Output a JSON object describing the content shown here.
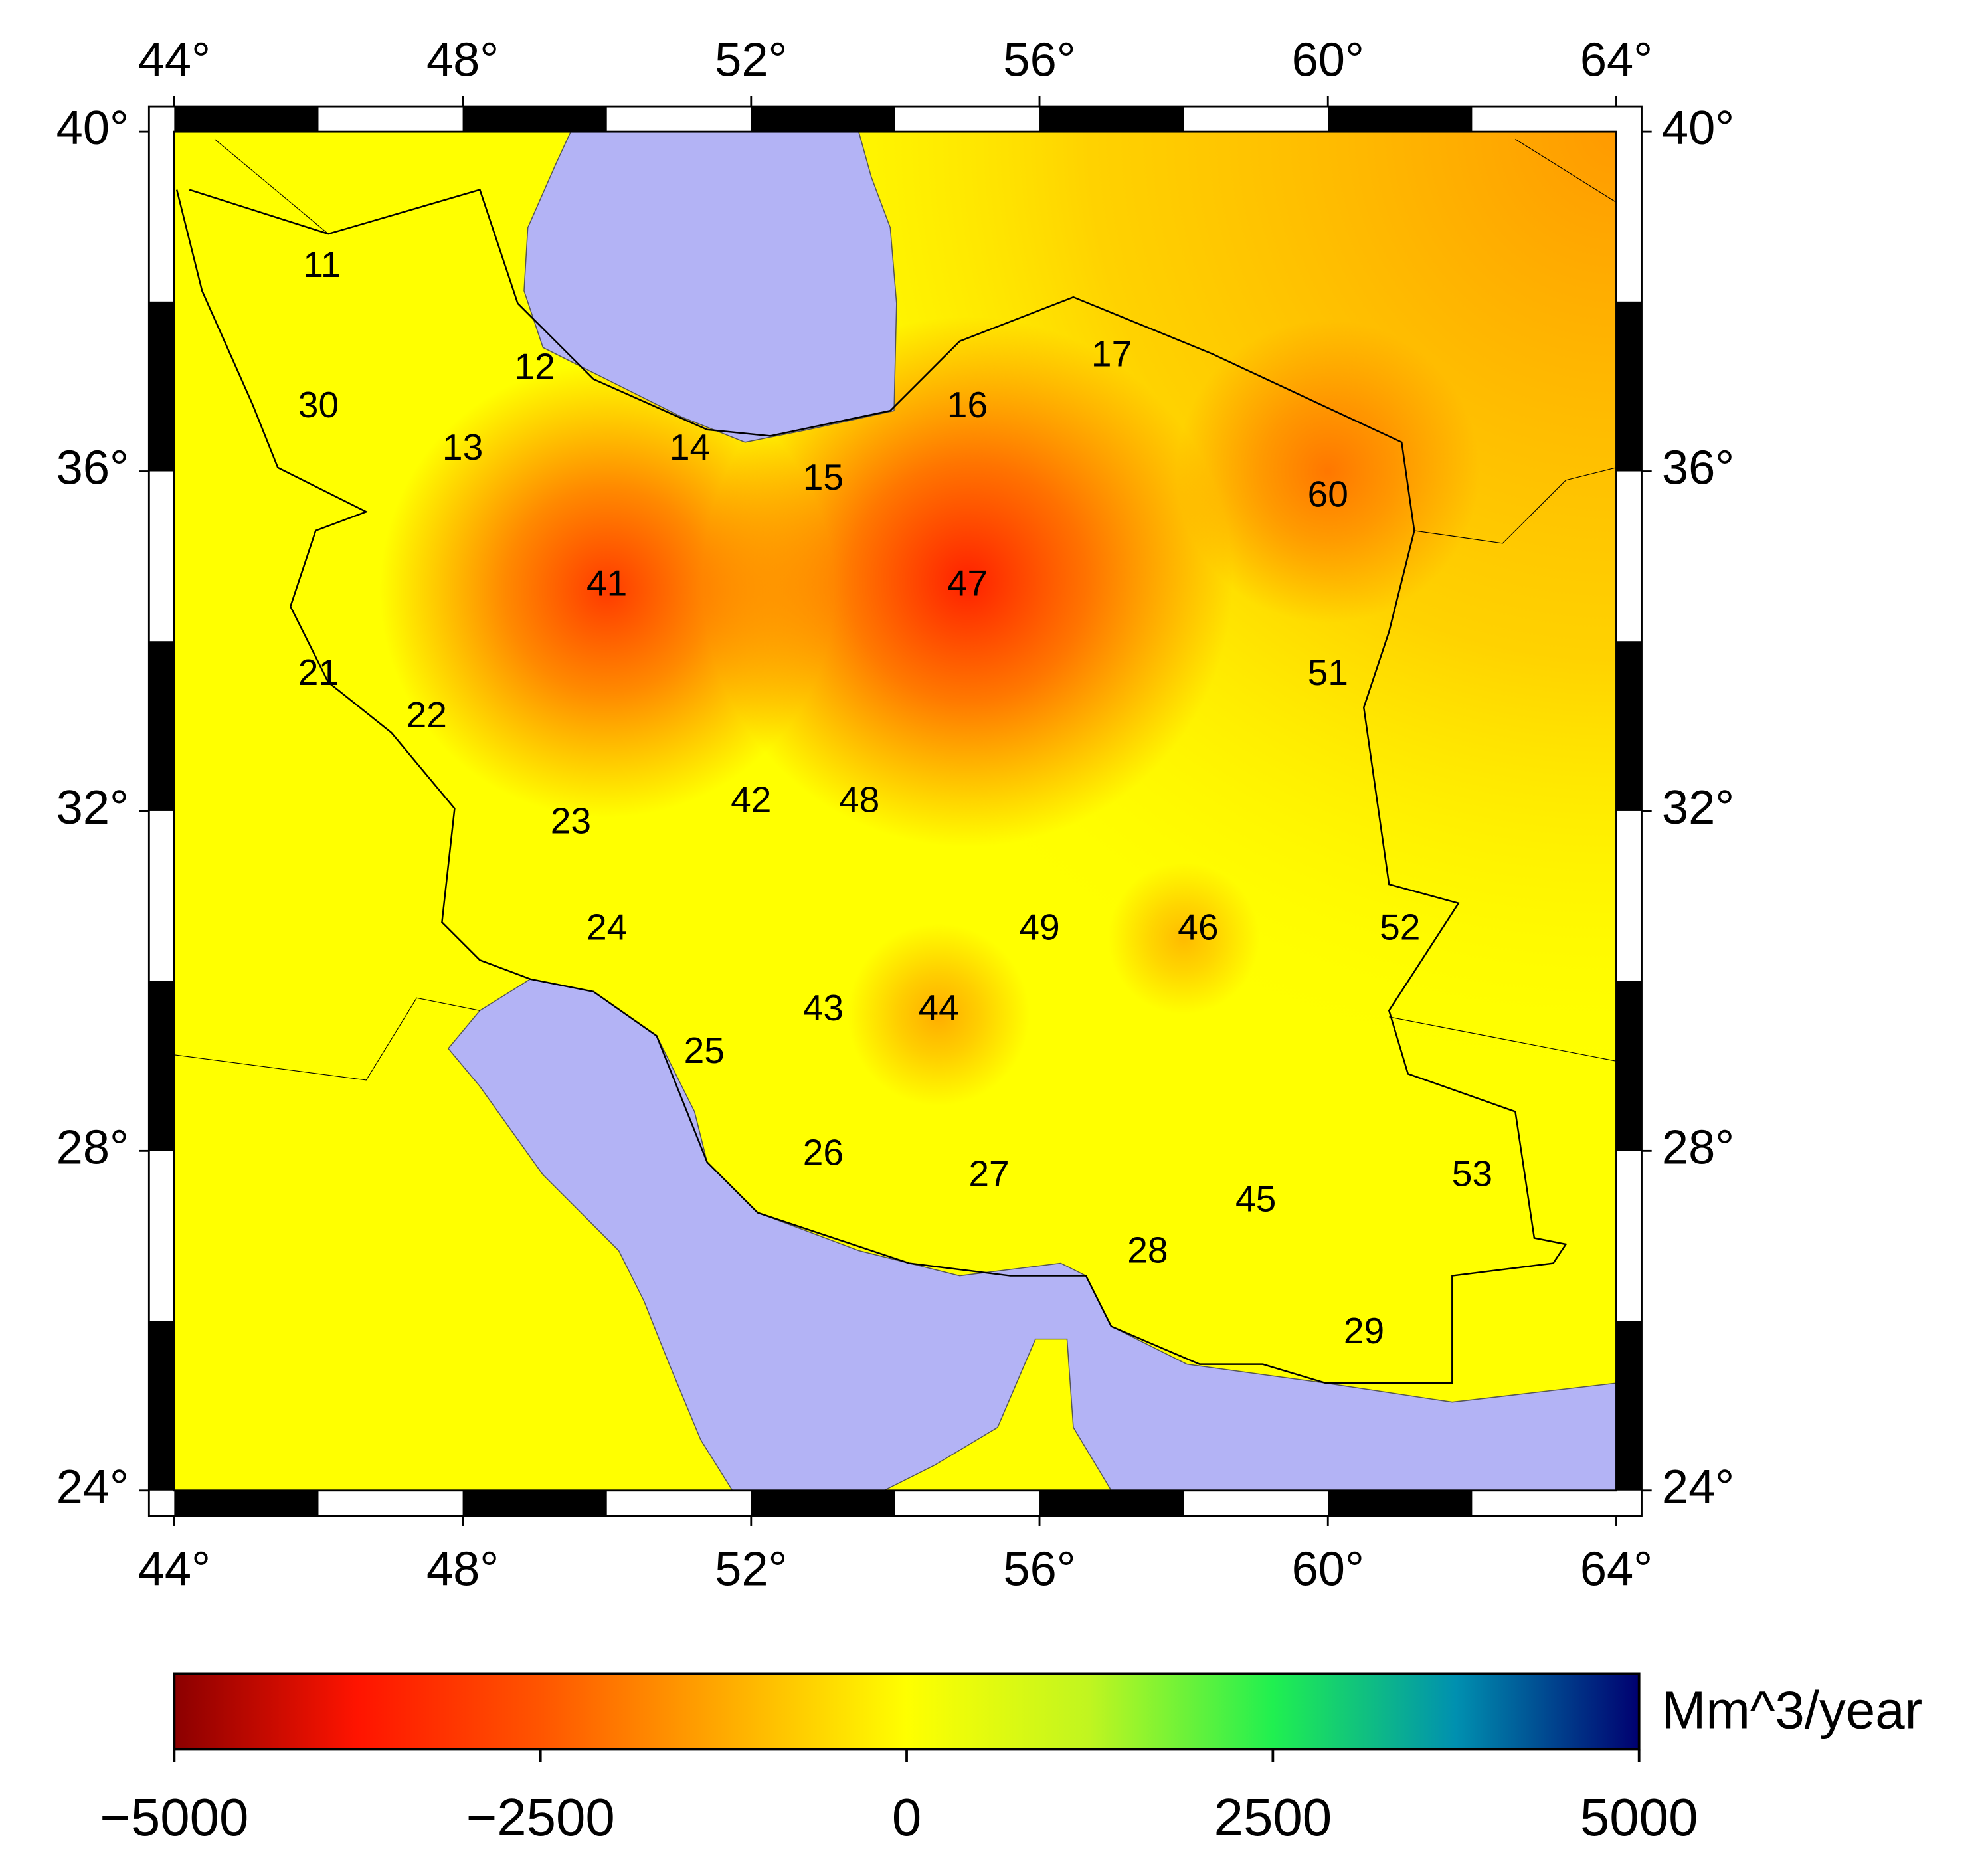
{
  "map": {
    "xlim": [
      44,
      64
    ],
    "ylim": [
      24,
      40
    ],
    "xticks": [
      {
        "value": 44,
        "label": "44°"
      },
      {
        "value": 48,
        "label": "48°"
      },
      {
        "value": 52,
        "label": "52°"
      },
      {
        "value": 56,
        "label": "56°"
      },
      {
        "value": 60,
        "label": "60°"
      },
      {
        "value": 64,
        "label": "64°"
      }
    ],
    "yticks": [
      {
        "value": 24,
        "label": "24°"
      },
      {
        "value": 28,
        "label": "28°"
      },
      {
        "value": 32,
        "label": "32°"
      },
      {
        "value": 36,
        "label": "36°"
      },
      {
        "value": 40,
        "label": "40°"
      }
    ],
    "basins": [
      {
        "label": "11",
        "lon": 46.05,
        "lat": 38.4
      },
      {
        "label": "30",
        "lon": 46.0,
        "lat": 36.75
      },
      {
        "label": "12",
        "lon": 49.0,
        "lat": 37.2
      },
      {
        "label": "13",
        "lon": 48.0,
        "lat": 36.25
      },
      {
        "label": "14",
        "lon": 51.15,
        "lat": 36.25
      },
      {
        "label": "15",
        "lon": 53.0,
        "lat": 35.9
      },
      {
        "label": "16",
        "lon": 55.0,
        "lat": 36.75
      },
      {
        "label": "17",
        "lon": 57.0,
        "lat": 37.35
      },
      {
        "label": "60",
        "lon": 60.0,
        "lat": 35.7
      },
      {
        "label": "41",
        "lon": 50.0,
        "lat": 34.65
      },
      {
        "label": "47",
        "lon": 55.0,
        "lat": 34.65
      },
      {
        "label": "21",
        "lon": 46.0,
        "lat": 33.6
      },
      {
        "label": "22",
        "lon": 47.5,
        "lat": 33.1
      },
      {
        "label": "51",
        "lon": 60.0,
        "lat": 33.6
      },
      {
        "label": "42",
        "lon": 52.0,
        "lat": 32.1
      },
      {
        "label": "48",
        "lon": 53.5,
        "lat": 32.1
      },
      {
        "label": "23",
        "lon": 49.5,
        "lat": 31.85
      },
      {
        "label": "24",
        "lon": 50.0,
        "lat": 30.6
      },
      {
        "label": "49",
        "lon": 56.0,
        "lat": 30.6
      },
      {
        "label": "46",
        "lon": 58.2,
        "lat": 30.6
      },
      {
        "label": "52",
        "lon": 61.0,
        "lat": 30.6
      },
      {
        "label": "43",
        "lon": 53.0,
        "lat": 29.65
      },
      {
        "label": "44",
        "lon": 54.6,
        "lat": 29.65
      },
      {
        "label": "25",
        "lon": 51.35,
        "lat": 29.15
      },
      {
        "label": "26",
        "lon": 53.0,
        "lat": 27.95
      },
      {
        "label": "27",
        "lon": 55.3,
        "lat": 27.7
      },
      {
        "label": "53",
        "lon": 62.0,
        "lat": 27.7
      },
      {
        "label": "45",
        "lon": 59.0,
        "lat": 27.4
      },
      {
        "label": "28",
        "lon": 57.5,
        "lat": 26.8
      },
      {
        "label": "29",
        "lon": 60.5,
        "lat": 25.85
      }
    ],
    "anomalies": [
      {
        "lon": 50.0,
        "lat": 34.6,
        "value": -3000
      },
      {
        "lon": 55.0,
        "lat": 34.7,
        "value": -3500
      },
      {
        "lon": 60.0,
        "lat": 36.0,
        "value": -2000
      },
      {
        "lon": 54.6,
        "lat": 29.6,
        "value": -1200
      },
      {
        "lon": 58.0,
        "lat": 30.5,
        "value": -1000
      }
    ]
  },
  "colorbar": {
    "label": "Mm^3/year",
    "lim": [
      -5000,
      5000
    ],
    "ticks": [
      {
        "value": -5000,
        "label": "−5000"
      },
      {
        "value": -2500,
        "label": "−2500"
      },
      0,
      2500,
      5000
    ],
    "colors": [
      "#8b0000",
      "#ff1400",
      "#ff5500",
      "#ffaa00",
      "#ffff00",
      "#c0f520",
      "#20f050",
      "#0090b0",
      "#000070"
    ]
  }
}
